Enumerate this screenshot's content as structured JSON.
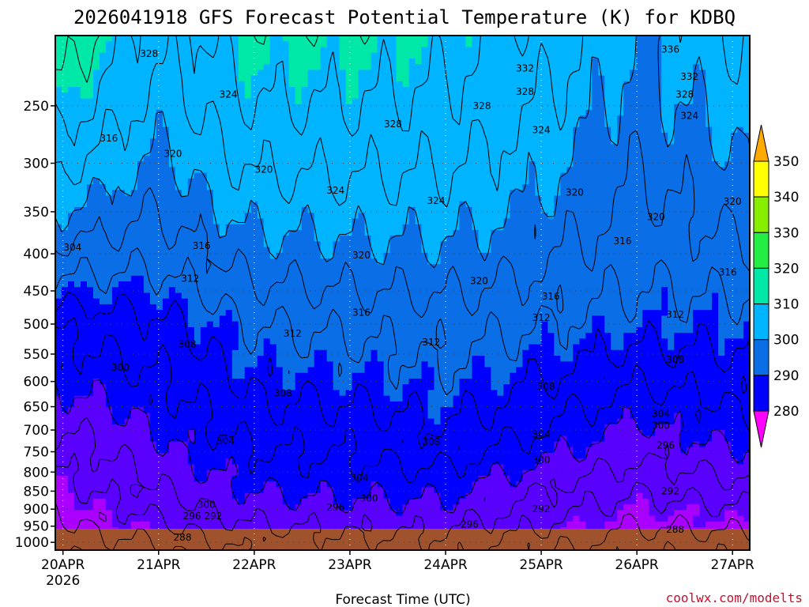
{
  "chart_data": {
    "type": "contour-time-height",
    "title": "2026041918 GFS Forecast Potential Temperature (K) for KDBQ",
    "xlabel": "Forecast Time (UTC)",
    "ylabel": "",
    "credit": "coolwx.com/modelts",
    "x_ticks": [
      "20APR",
      "21APR",
      "22APR",
      "23APR",
      "24APR",
      "25APR",
      "26APR",
      "27APR"
    ],
    "x_year": "2026",
    "y_ticks": [
      250,
      300,
      350,
      400,
      450,
      500,
      550,
      600,
      650,
      700,
      750,
      800,
      850,
      900,
      950,
      1000
    ],
    "y_range": [
      200,
      1025
    ],
    "y_scale": "log-pressure",
    "colorbar": {
      "levels": [
        280,
        290,
        300,
        310,
        320,
        330,
        340,
        350
      ],
      "colors": [
        "#ff00ff",
        "#aa00ff",
        "#5a00ff",
        "#0000ff",
        "#0a6ee6",
        "#00b4ff",
        "#00e8a8",
        "#22ee44",
        "#88ee00",
        "#ffff00",
        "#ffaa00"
      ]
    },
    "contour_interval": 4,
    "theta_columns": [
      {
        "date": "20APR00",
        "t250": 330,
        "t500": 305,
        "t700": 296,
        "t850": 290,
        "t950": 287
      },
      {
        "date": "21APR00",
        "t250": 322,
        "t500": 307,
        "t700": 300,
        "t850": 296,
        "t950": 291
      },
      {
        "date": "22APR00",
        "t250": 328,
        "t500": 312,
        "t700": 306,
        "t850": 300,
        "t950": 296
      },
      {
        "date": "23APR00",
        "t250": 328,
        "t500": 313,
        "t700": 306,
        "t850": 301,
        "t950": 297
      },
      {
        "date": "24APR00",
        "t250": 327,
        "t500": 314,
        "t700": 308,
        "t850": 301,
        "t950": 297
      },
      {
        "date": "25APR00",
        "t250": 324,
        "t500": 312,
        "t700": 304,
        "t850": 296,
        "t950": 292
      },
      {
        "date": "26APR00",
        "t250": 318,
        "t500": 310,
        "t700": 299,
        "t850": 292,
        "t950": 288
      },
      {
        "date": "27APR00",
        "t250": 322,
        "t500": 310,
        "t700": 302,
        "t850": 294,
        "t950": 289
      }
    ],
    "contour_labels": [
      {
        "value": "328",
        "d": 0.9,
        "p": 212
      },
      {
        "value": "324",
        "d": 1.73,
        "p": 241
      },
      {
        "value": "316",
        "d": 0.48,
        "p": 277
      },
      {
        "value": "320",
        "d": 1.15,
        "p": 291
      },
      {
        "value": "320",
        "d": 2.1,
        "p": 306
      },
      {
        "value": "328",
        "d": 3.45,
        "p": 265
      },
      {
        "value": "324",
        "d": 2.85,
        "p": 327
      },
      {
        "value": "324",
        "d": 3.9,
        "p": 338
      },
      {
        "value": "328",
        "d": 4.38,
        "p": 250
      },
      {
        "value": "332",
        "d": 4.83,
        "p": 222
      },
      {
        "value": "328",
        "d": 4.83,
        "p": 239
      },
      {
        "value": "324",
        "d": 5.0,
        "p": 270
      },
      {
        "value": "336",
        "d": 6.35,
        "p": 209
      },
      {
        "value": "332",
        "d": 6.55,
        "p": 228
      },
      {
        "value": "328",
        "d": 6.5,
        "p": 241
      },
      {
        "value": "324",
        "d": 6.55,
        "p": 258
      },
      {
        "value": "320",
        "d": 5.35,
        "p": 329
      },
      {
        "value": "320",
        "d": 6.2,
        "p": 356
      },
      {
        "value": "320",
        "d": 7.0,
        "p": 339
      },
      {
        "value": "316",
        "d": 5.85,
        "p": 384
      },
      {
        "value": "316",
        "d": 6.95,
        "p": 424
      },
      {
        "value": "304",
        "d": 0.1,
        "p": 392
      },
      {
        "value": "316",
        "d": 1.45,
        "p": 390
      },
      {
        "value": "320",
        "d": 3.12,
        "p": 402
      },
      {
        "value": "320",
        "d": 4.35,
        "p": 436
      },
      {
        "value": "312",
        "d": 1.33,
        "p": 433
      },
      {
        "value": "316",
        "d": 5.1,
        "p": 458
      },
      {
        "value": "316",
        "d": 3.12,
        "p": 482
      },
      {
        "value": "312",
        "d": 5.0,
        "p": 490
      },
      {
        "value": "312",
        "d": 6.4,
        "p": 485
      },
      {
        "value": "308",
        "d": 1.3,
        "p": 533
      },
      {
        "value": "312",
        "d": 2.4,
        "p": 515
      },
      {
        "value": "312",
        "d": 3.85,
        "p": 530
      },
      {
        "value": "300",
        "d": 0.6,
        "p": 574
      },
      {
        "value": "308",
        "d": 2.3,
        "p": 623
      },
      {
        "value": "308",
        "d": 6.4,
        "p": 560
      },
      {
        "value": "308",
        "d": 5.05,
        "p": 610
      },
      {
        "value": "304",
        "d": 1.7,
        "p": 725
      },
      {
        "value": "304",
        "d": 6.25,
        "p": 665
      },
      {
        "value": "300",
        "d": 6.25,
        "p": 690
      },
      {
        "value": "304",
        "d": 5.0,
        "p": 710
      },
      {
        "value": "308",
        "d": 3.85,
        "p": 727
      },
      {
        "value": "300",
        "d": 5.0,
        "p": 770
      },
      {
        "value": "296",
        "d": 6.3,
        "p": 735
      },
      {
        "value": "304",
        "d": 3.1,
        "p": 815
      },
      {
        "value": "300",
        "d": 3.2,
        "p": 870
      },
      {
        "value": "292",
        "d": 6.35,
        "p": 850
      },
      {
        "value": "300",
        "d": 1.5,
        "p": 887
      },
      {
        "value": "296",
        "d": 1.35,
        "p": 920
      },
      {
        "value": "292",
        "d": 1.57,
        "p": 920
      },
      {
        "value": "296",
        "d": 2.85,
        "p": 895
      },
      {
        "value": "292",
        "d": 5.0,
        "p": 900
      },
      {
        "value": "296",
        "d": 4.25,
        "p": 945
      },
      {
        "value": "288",
        "d": 1.25,
        "p": 985
      },
      {
        "value": "288",
        "d": 6.4,
        "p": 960
      }
    ],
    "grid": true,
    "ground_color": "#a0522d",
    "plot_frame": {
      "d_range": [
        -0.08,
        7.18
      ]
    }
  }
}
